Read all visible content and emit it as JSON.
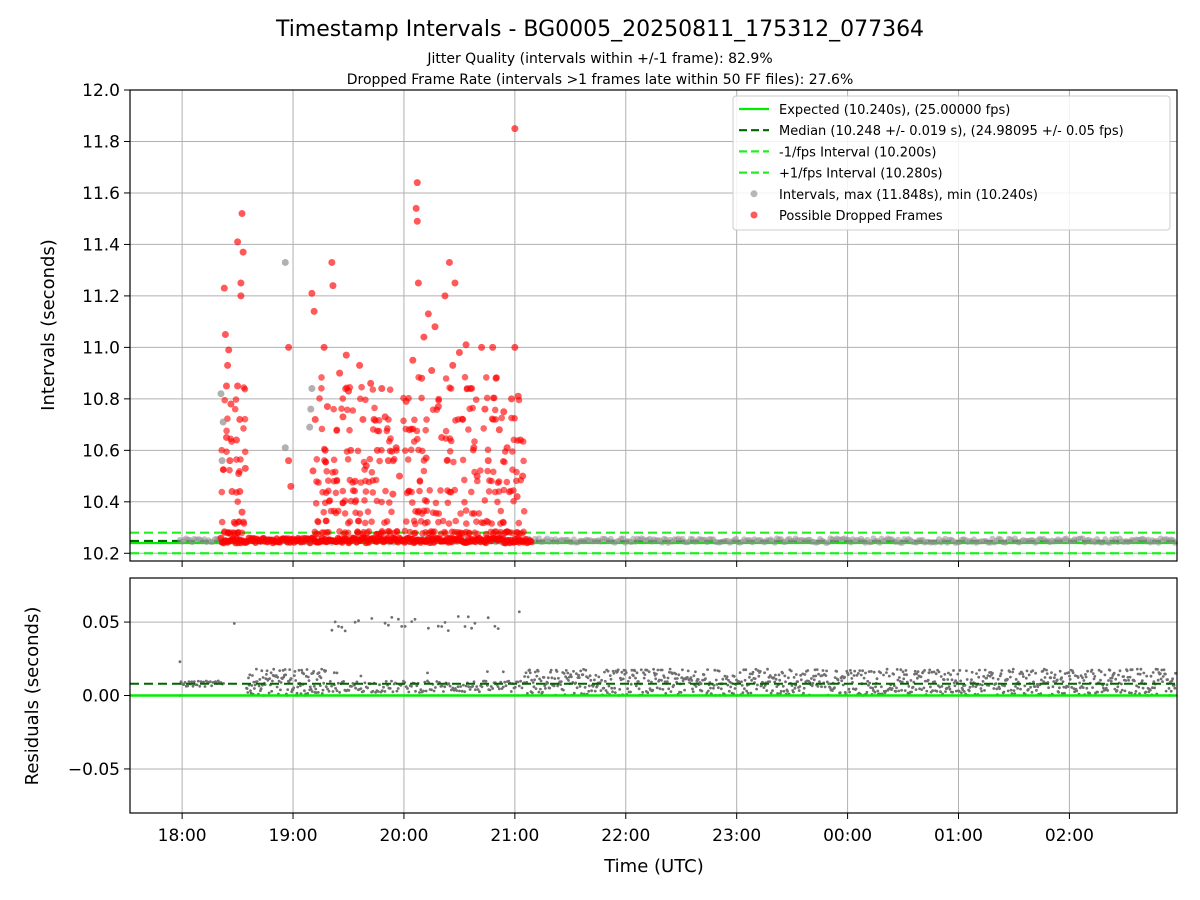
{
  "chart_data": {
    "type": "scatter",
    "title": "Timestamp Intervals - BG0005_20250811_175312_077364",
    "subtitle_lines": [
      "Jitter Quality (intervals within +/-1 frame): 82.9%",
      "Dropped Frame Rate (intervals >1 frames late within 50 FF files): 27.6%"
    ],
    "xlabel": "Time (UTC)",
    "x_tick_labels": [
      "18:00",
      "19:00",
      "20:00",
      "21:00",
      "22:00",
      "23:00",
      "00:00",
      "01:00",
      "02:00"
    ],
    "x_ticks_hours": [
      18,
      19,
      20,
      21,
      22,
      23,
      24,
      25,
      26
    ],
    "xlim_hours": [
      17.53,
      26.97
    ],
    "grid": true,
    "colors": {
      "expected": "#00ee00",
      "median": "#006400",
      "fps_interval": "#22ee22",
      "intervals": "#909090",
      "dropped": "#ff0000",
      "residual_points": "#707070"
    },
    "top_panel": {
      "ylabel": "Intervals (seconds)",
      "ylim": [
        10.17,
        12.0
      ],
      "y_ticks": [
        10.2,
        10.4,
        10.6,
        10.8,
        11.0,
        11.2,
        11.4,
        11.6,
        11.8,
        12.0
      ],
      "y_tick_labels": [
        "10.2",
        "10.4",
        "10.6",
        "10.8",
        "11.0",
        "11.2",
        "11.4",
        "11.6",
        "11.8",
        "12.0"
      ],
      "expected": 10.24,
      "median": 10.248,
      "minus_fps": 10.2,
      "plus_fps": 10.28,
      "data_end_hours": 21.15,
      "gray_points": [
        {
          "x": 18.35,
          "y": 10.82
        },
        {
          "x": 18.37,
          "y": 10.71
        },
        {
          "x": 18.36,
          "y": 10.56
        },
        {
          "x": 18.93,
          "y": 11.33
        },
        {
          "x": 18.93,
          "y": 10.61
        },
        {
          "x": 19.17,
          "y": 10.84
        },
        {
          "x": 19.16,
          "y": 10.76
        },
        {
          "x": 19.15,
          "y": 10.69
        }
      ],
      "red_points": [
        {
          "x": 18.39,
          "y": 11.05
        },
        {
          "x": 18.38,
          "y": 11.23
        },
        {
          "x": 18.42,
          "y": 10.99
        },
        {
          "x": 18.41,
          "y": 10.93
        },
        {
          "x": 18.4,
          "y": 10.85
        },
        {
          "x": 18.44,
          "y": 10.78
        },
        {
          "x": 18.4,
          "y": 10.65
        },
        {
          "x": 18.43,
          "y": 10.56
        },
        {
          "x": 18.45,
          "y": 10.44
        },
        {
          "x": 18.47,
          "y": 10.32
        },
        {
          "x": 18.5,
          "y": 11.41
        },
        {
          "x": 18.53,
          "y": 11.25
        },
        {
          "x": 18.54,
          "y": 11.52
        },
        {
          "x": 18.55,
          "y": 11.37
        },
        {
          "x": 18.53,
          "y": 11.2
        },
        {
          "x": 18.5,
          "y": 10.85
        },
        {
          "x": 18.52,
          "y": 10.72
        },
        {
          "x": 18.49,
          "y": 10.64
        },
        {
          "x": 18.51,
          "y": 10.51
        },
        {
          "x": 18.52,
          "y": 10.44
        },
        {
          "x": 18.54,
          "y": 10.36
        },
        {
          "x": 18.57,
          "y": 10.53
        },
        {
          "x": 18.96,
          "y": 11.0
        },
        {
          "x": 18.98,
          "y": 10.46
        },
        {
          "x": 18.96,
          "y": 10.56
        },
        {
          "x": 19.17,
          "y": 11.21
        },
        {
          "x": 19.19,
          "y": 11.14
        },
        {
          "x": 19.2,
          "y": 10.72
        },
        {
          "x": 19.18,
          "y": 10.52
        },
        {
          "x": 19.28,
          "y": 11.0
        },
        {
          "x": 19.35,
          "y": 11.33
        },
        {
          "x": 19.36,
          "y": 11.24
        },
        {
          "x": 19.29,
          "y": 10.6
        },
        {
          "x": 19.31,
          "y": 10.77
        },
        {
          "x": 19.42,
          "y": 10.9
        },
        {
          "x": 19.45,
          "y": 10.73
        },
        {
          "x": 19.48,
          "y": 10.97
        },
        {
          "x": 19.5,
          "y": 10.83
        },
        {
          "x": 19.52,
          "y": 10.6
        },
        {
          "x": 19.56,
          "y": 10.48
        },
        {
          "x": 19.6,
          "y": 10.93
        },
        {
          "x": 19.63,
          "y": 10.72
        },
        {
          "x": 19.66,
          "y": 10.54
        },
        {
          "x": 19.7,
          "y": 10.86
        },
        {
          "x": 19.73,
          "y": 10.72
        },
        {
          "x": 19.76,
          "y": 10.6
        },
        {
          "x": 19.8,
          "y": 10.84
        },
        {
          "x": 19.83,
          "y": 10.73
        },
        {
          "x": 19.86,
          "y": 10.56
        },
        {
          "x": 19.9,
          "y": 10.43
        },
        {
          "x": 19.93,
          "y": 10.61
        },
        {
          "x": 19.96,
          "y": 10.5
        },
        {
          "x": 20.02,
          "y": 10.79
        },
        {
          "x": 20.05,
          "y": 10.68
        },
        {
          "x": 20.08,
          "y": 10.95
        },
        {
          "x": 20.11,
          "y": 11.54
        },
        {
          "x": 20.12,
          "y": 11.64
        },
        {
          "x": 20.12,
          "y": 11.49
        },
        {
          "x": 20.13,
          "y": 11.25
        },
        {
          "x": 20.16,
          "y": 10.88
        },
        {
          "x": 20.18,
          "y": 11.04
        },
        {
          "x": 20.2,
          "y": 10.57
        },
        {
          "x": 20.22,
          "y": 11.13
        },
        {
          "x": 20.25,
          "y": 10.91
        },
        {
          "x": 20.28,
          "y": 11.08
        },
        {
          "x": 20.31,
          "y": 10.77
        },
        {
          "x": 20.34,
          "y": 10.65
        },
        {
          "x": 20.37,
          "y": 11.2
        },
        {
          "x": 20.41,
          "y": 11.33
        },
        {
          "x": 20.44,
          "y": 10.93
        },
        {
          "x": 20.46,
          "y": 11.25
        },
        {
          "x": 20.5,
          "y": 10.98
        },
        {
          "x": 20.53,
          "y": 10.72
        },
        {
          "x": 20.56,
          "y": 11.01
        },
        {
          "x": 20.6,
          "y": 10.84
        },
        {
          "x": 20.63,
          "y": 10.61
        },
        {
          "x": 20.66,
          "y": 10.5
        },
        {
          "x": 20.7,
          "y": 11.0
        },
        {
          "x": 20.73,
          "y": 10.76
        },
        {
          "x": 20.76,
          "y": 10.56
        },
        {
          "x": 20.8,
          "y": 11.0
        },
        {
          "x": 20.83,
          "y": 10.88
        },
        {
          "x": 20.86,
          "y": 10.68
        },
        {
          "x": 20.9,
          "y": 10.75
        },
        {
          "x": 20.93,
          "y": 10.61
        },
        {
          "x": 20.97,
          "y": 10.8
        },
        {
          "x": 21.0,
          "y": 11.85
        },
        {
          "x": 21.0,
          "y": 11.0
        },
        {
          "x": 21.03,
          "y": 10.81
        },
        {
          "x": 21.05,
          "y": 10.64
        },
        {
          "x": 21.07,
          "y": 10.5
        },
        {
          "x": 21.02,
          "y": 10.42
        }
      ]
    },
    "legend": [
      {
        "label": "Expected (10.240s), (25.00000 fps)",
        "style": "solid",
        "color_key": "expected"
      },
      {
        "label": "Median (10.248 +/- 0.019 s), (24.98095 +/- 0.05 fps)",
        "style": "dashed",
        "color_key": "median"
      },
      {
        "label": "-1/fps Interval (10.200s)",
        "style": "dashed",
        "color_key": "fps_interval"
      },
      {
        "label": "+1/fps Interval (10.280s)",
        "style": "dashed",
        "color_key": "fps_interval"
      },
      {
        "label": "Intervals, max (11.848s), min (10.240s)",
        "style": "dot",
        "color_key": "intervals"
      },
      {
        "label": "Possible Dropped Frames",
        "style": "dot",
        "color_key": "dropped"
      }
    ],
    "legend_placement": "top-right",
    "bottom_panel": {
      "ylabel": "Residuals (seconds)",
      "ylim": [
        -0.08,
        0.08
      ],
      "y_ticks": [
        -0.05,
        0.0,
        0.05
      ],
      "y_tick_labels": [
        "−0.05",
        "0.00",
        "0.05"
      ],
      "zero_line": 0.0,
      "median_residual": 0.008
    }
  }
}
